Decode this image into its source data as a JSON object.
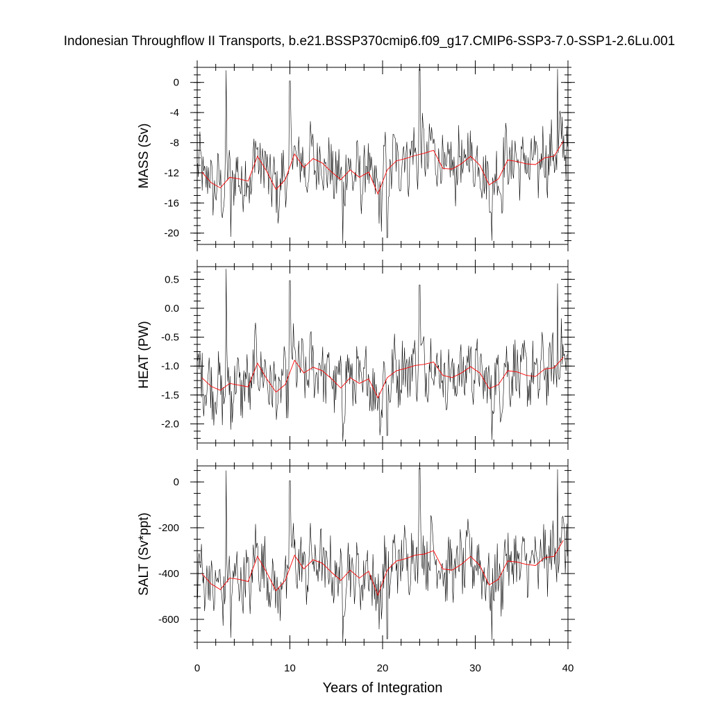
{
  "title": "Indonesian Throughflow II Transports, b.e21.BSSP370cmip6.f09_g17.CMIP6-SSP3-7.0-SSP1-2.6Lu.001",
  "chart_data": {
    "type": "line",
    "xlabel": "Years of Integration",
    "xlim": [
      0,
      40
    ],
    "xticks": [
      0,
      10,
      20,
      30,
      40
    ],
    "grid": false,
    "legend": "none",
    "colors": {
      "monthly": "#000000",
      "annual_mean": "#ff0000"
    },
    "annual_x": [
      0.5,
      1.5,
      2.5,
      3.5,
      4.5,
      5.5,
      6.5,
      7.5,
      8.5,
      9.5,
      10.5,
      11.5,
      12.5,
      13.5,
      14.5,
      15.5,
      16.5,
      17.5,
      18.5,
      19.5,
      20.5,
      21.5,
      22.5,
      23.5,
      24.5,
      25.5,
      26.5,
      27.5,
      28.5,
      29.5,
      30.5,
      31.5,
      32.5,
      33.5,
      34.5,
      35.5,
      36.5,
      37.5,
      38.5,
      39.5
    ],
    "panels": [
      {
        "ylabel": "MASS (Sv)",
        "ylim": [
          -21.5,
          2.0
        ],
        "yticks": [
          0,
          -4,
          -8,
          -12,
          -16,
          -20
        ],
        "ytick_labels": [
          "0",
          "-4",
          "-8",
          "-12",
          "-16",
          "-20"
        ],
        "annual_mean": [
          -11.9,
          -13.3,
          -14.0,
          -12.6,
          -12.8,
          -13.1,
          -9.8,
          -11.8,
          -14.2,
          -12.9,
          -9.5,
          -11.3,
          -10.1,
          -10.7,
          -11.9,
          -12.9,
          -11.6,
          -12.6,
          -11.9,
          -14.8,
          -11.6,
          -10.4,
          -10.1,
          -9.7,
          -9.4,
          -9.0,
          -11.4,
          -11.5,
          -10.8,
          -9.8,
          -11.0,
          -13.6,
          -12.8,
          -10.3,
          -10.5,
          -10.8,
          -10.9,
          -10.0,
          -9.8,
          -7.8
        ],
        "monthly_extremes": [
          {
            "x": 3.1,
            "y": 1.6
          },
          {
            "x": 3.6,
            "y": -20.5
          },
          {
            "x": 10.0,
            "y": 0.2
          },
          {
            "x": 15.7,
            "y": -21.4
          },
          {
            "x": 20.5,
            "y": -20.6
          },
          {
            "x": 24.0,
            "y": 1.8
          },
          {
            "x": 31.8,
            "y": -21.0
          },
          {
            "x": 38.9,
            "y": 1.8
          }
        ]
      },
      {
        "ylabel": "HEAT (PW)",
        "ylim": [
          -2.33,
          0.72
        ],
        "yticks": [
          0.5,
          0.0,
          -0.5,
          -1.0,
          -1.5,
          -2.0
        ],
        "ytick_labels": [
          "0.5",
          "0.0",
          "-0.5",
          "-1.0",
          "-1.5",
          "-2.0"
        ],
        "annual_mean": [
          -1.2,
          -1.35,
          -1.42,
          -1.3,
          -1.33,
          -1.36,
          -0.95,
          -1.22,
          -1.45,
          -1.32,
          -0.9,
          -1.12,
          -1.02,
          -1.08,
          -1.22,
          -1.38,
          -1.2,
          -1.3,
          -1.22,
          -1.55,
          -1.2,
          -1.08,
          -1.04,
          -0.99,
          -0.97,
          -0.93,
          -1.16,
          -1.2,
          -1.12,
          -1.01,
          -1.12,
          -1.39,
          -1.32,
          -1.08,
          -1.1,
          -1.16,
          -1.18,
          -1.05,
          -1.03,
          -0.85
        ],
        "monthly_extremes": [
          {
            "x": 3.1,
            "y": 0.68
          },
          {
            "x": 3.6,
            "y": -2.1
          },
          {
            "x": 10.0,
            "y": 0.48
          },
          {
            "x": 15.7,
            "y": -2.3
          },
          {
            "x": 20.5,
            "y": -2.2
          },
          {
            "x": 24.0,
            "y": 0.4
          },
          {
            "x": 31.8,
            "y": -2.28
          },
          {
            "x": 38.9,
            "y": 0.43
          }
        ]
      },
      {
        "ylabel": "SALT (Sv*ppt)",
        "ylim": [
          -700,
          70
        ],
        "yticks": [
          0,
          -200,
          -400,
          -600
        ],
        "ytick_labels": [
          "0",
          "-200",
          "-400",
          "-600"
        ],
        "annual_mean": [
          -400,
          -445,
          -470,
          -420,
          -425,
          -435,
          -325,
          -395,
          -475,
          -430,
          -320,
          -380,
          -340,
          -355,
          -395,
          -430,
          -385,
          -420,
          -390,
          -495,
          -385,
          -345,
          -335,
          -320,
          -315,
          -300,
          -380,
          -385,
          -360,
          -325,
          -365,
          -450,
          -425,
          -345,
          -350,
          -360,
          -365,
          -330,
          -325,
          -255
        ],
        "monthly_extremes": [
          {
            "x": 3.1,
            "y": 50
          },
          {
            "x": 3.6,
            "y": -680
          },
          {
            "x": 10.0,
            "y": 5
          },
          {
            "x": 15.7,
            "y": -700
          },
          {
            "x": 20.5,
            "y": -685
          },
          {
            "x": 24.0,
            "y": 60
          },
          {
            "x": 31.8,
            "y": -690
          },
          {
            "x": 38.9,
            "y": 55
          }
        ]
      }
    ]
  }
}
